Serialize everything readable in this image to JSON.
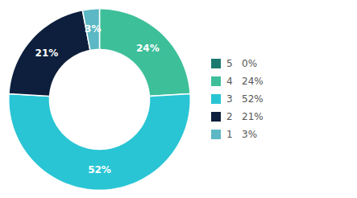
{
  "chart_data": {
    "type": "pie",
    "categories": [
      "5   0%",
      "4   24%",
      "3   52%",
      "2   21%",
      "1   3%"
    ],
    "values": [
      0,
      24,
      52,
      21,
      3
    ],
    "value_labels": [
      null,
      "24%",
      "52%",
      "21%",
      "3%"
    ],
    "colors": [
      "#1a7a6e",
      "#3dbf9a",
      "#29c5d4",
      "#0d1f3c",
      "#5bb8c4"
    ],
    "data_labels": true,
    "legend": "right"
  }
}
